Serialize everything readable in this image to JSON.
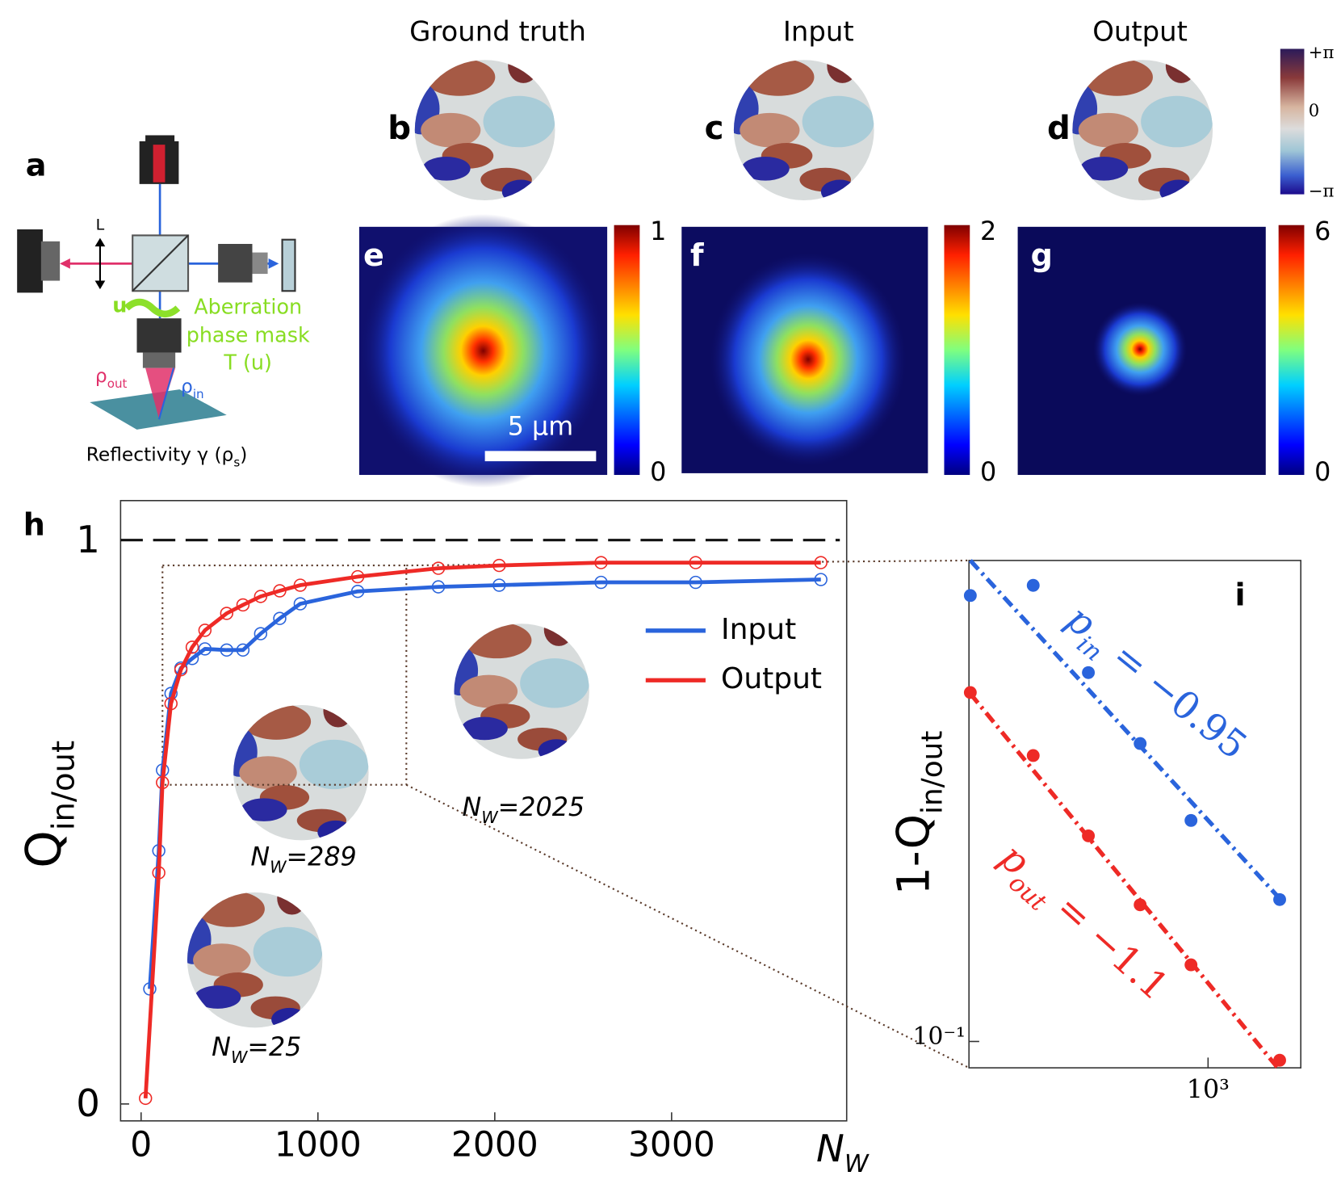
{
  "panel_a": {
    "letter": "a",
    "lens": "L",
    "u": "u",
    "aberration": [
      "Aberration",
      "phase mask",
      "T (u)"
    ],
    "rho": "ρ",
    "out": "out",
    "in": "in",
    "reflectivity": "Reflectivity γ (ρ",
    "s": "s",
    "close": ")"
  },
  "panels_top": {
    "titles": [
      "Ground truth",
      "Input",
      "Output"
    ],
    "letters": [
      "b",
      "c",
      "d"
    ],
    "phase_ticks": [
      "+π",
      "0",
      "−π"
    ]
  },
  "panels_psf": {
    "letters": [
      "e",
      "f",
      "g"
    ],
    "colorbar_ticks": [
      [
        0,
        1
      ],
      [
        0,
        2
      ],
      [
        0,
        6
      ]
    ],
    "scale_bar": "5 µm"
  },
  "chart_data": [
    {
      "type": "line",
      "letter": "h",
      "xlabel": "N",
      "xlabel_sub": "W",
      "ylabel": "Q",
      "ylabel_sub": "in/out",
      "xlim": [
        -116,
        3990
      ],
      "ylim": [
        -0.03,
        1.07
      ],
      "xticks": [
        0,
        1000,
        2000,
        3000
      ],
      "yticks": [
        0,
        1
      ],
      "reference_line": 1,
      "legend": "center right",
      "series": [
        {
          "name": "Input",
          "color": "#2a64dc",
          "x": [
            49,
            100,
            121,
            169,
            225,
            289,
            361,
            484,
            576,
            676,
            784,
            900,
            1225,
            1681,
            2025,
            2601,
            3136,
            3844
          ],
          "values": [
            0.204,
            0.449,
            0.592,
            0.728,
            0.773,
            0.79,
            0.807,
            0.805,
            0.805,
            0.834,
            0.861,
            0.887,
            0.909,
            0.917,
            0.92,
            0.925,
            0.925,
            0.93
          ]
        },
        {
          "name": "Output",
          "color": "#ee2a26",
          "x": [
            25,
            100,
            121,
            169,
            225,
            289,
            361,
            484,
            576,
            676,
            784,
            900,
            1225,
            1681,
            2025,
            2601,
            3136,
            3844
          ],
          "values": [
            0.01,
            0.41,
            0.57,
            0.71,
            0.77,
            0.81,
            0.84,
            0.87,
            0.885,
            0.9,
            0.91,
            0.92,
            0.935,
            0.95,
            0.955,
            0.96,
            0.96,
            0.96
          ]
        }
      ],
      "zoom_box": {
        "x": [
          121,
          1500
        ],
        "y": [
          0.566,
          0.955
        ]
      },
      "insets": [
        {
          "label": "N",
          "sub": "W",
          "rest": "=289"
        },
        {
          "label": "N",
          "sub": "W",
          "rest": "=2025"
        },
        {
          "label": "N",
          "sub": "W",
          "rest": "=25"
        }
      ]
    },
    {
      "type": "scatter",
      "letter": "i",
      "ylabel": "1-Q",
      "ylabel_sub": "in/out",
      "log_x": true,
      "log_y": true,
      "xlim": [
        275,
        1650
      ],
      "ylim": [
        0.088,
        1.03
      ],
      "xticks": [
        {
          "value": 1000,
          "label": "10³"
        }
      ],
      "yticks": [
        {
          "value": 0.1,
          "label": "10⁻¹"
        }
      ],
      "series": [
        {
          "color": "#2a64dc",
          "x": [
            277,
            389,
            524,
            693,
            912,
            1472
          ],
          "values": [
            0.869,
            0.913,
            0.598,
            0.424,
            0.292,
            0.199
          ],
          "fit": {
            "x": [
              277,
              1472
            ],
            "values": [
              1.03,
              0.2
            ]
          },
          "annotation": {
            "label": "p",
            "sub": "in",
            "rest": " = −0.95"
          }
        },
        {
          "color": "#ee2a26",
          "x": [
            277,
            389,
            524,
            693,
            912,
            1472
          ],
          "values": [
            0.543,
            0.4,
            0.271,
            0.194,
            0.145,
            0.0913
          ],
          "fit": {
            "x": [
              277,
              1472
            ],
            "values": [
              0.54,
              0.087
            ]
          },
          "annotation": {
            "label": "p",
            "sub": "out",
            "rest": " = −1.1"
          }
        }
      ]
    }
  ]
}
